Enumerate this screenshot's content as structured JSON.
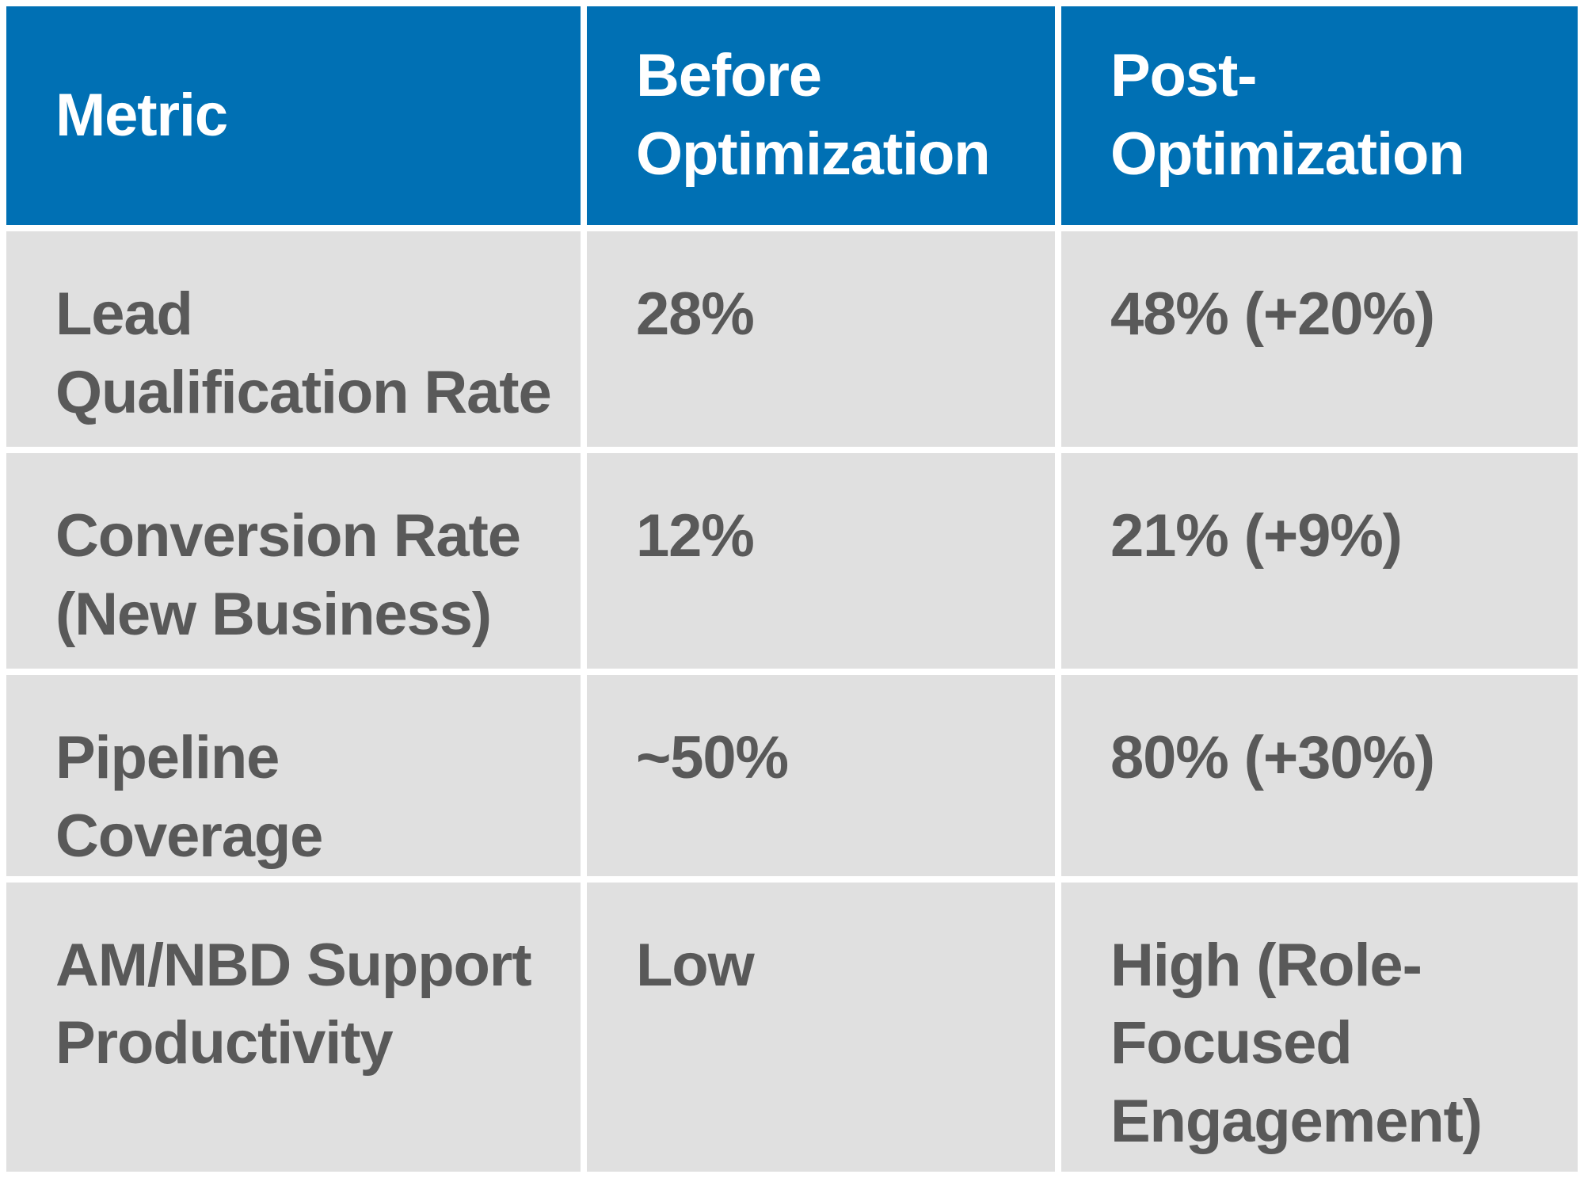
{
  "chart_data": {
    "type": "table",
    "columns": [
      "Metric",
      "Before Optimization",
      "Post-Optimization"
    ],
    "rows": [
      [
        "Lead Qualification Rate",
        "28%",
        "48% (+20%)"
      ],
      [
        "Conversion Rate (New Business)",
        "12%",
        "21% (+9%)"
      ],
      [
        "Pipeline Coverage",
        "~50%",
        "80% (+30%)"
      ],
      [
        "AM/NBD Support Productivity",
        "Low",
        "High (Role-Focused Engagement)"
      ]
    ]
  },
  "display": {
    "header": {
      "metric": "Metric",
      "before": "Before\nOptimization",
      "post": "Post-\nOptimization"
    },
    "rows": [
      {
        "metric": "Lead\nQualification Rate",
        "before": "28%",
        "post": "48% (+20%)"
      },
      {
        "metric": "Conversion Rate\n(New Business)",
        "before": "12%",
        "post": "21% (+9%)"
      },
      {
        "metric": "Pipeline Coverage",
        "before": "~50%",
        "post": "80% (+30%)"
      },
      {
        "metric": "AM/NBD Support\nProductivity",
        "before": "Low",
        "post": "High (Role-\nFocused\nEngagement)"
      }
    ]
  },
  "colors": {
    "header_bg": "#0070b4",
    "header_text": "#ffffff",
    "cell_bg": "#e0e0e0",
    "cell_text": "#595959",
    "gap": "#ffffff"
  }
}
